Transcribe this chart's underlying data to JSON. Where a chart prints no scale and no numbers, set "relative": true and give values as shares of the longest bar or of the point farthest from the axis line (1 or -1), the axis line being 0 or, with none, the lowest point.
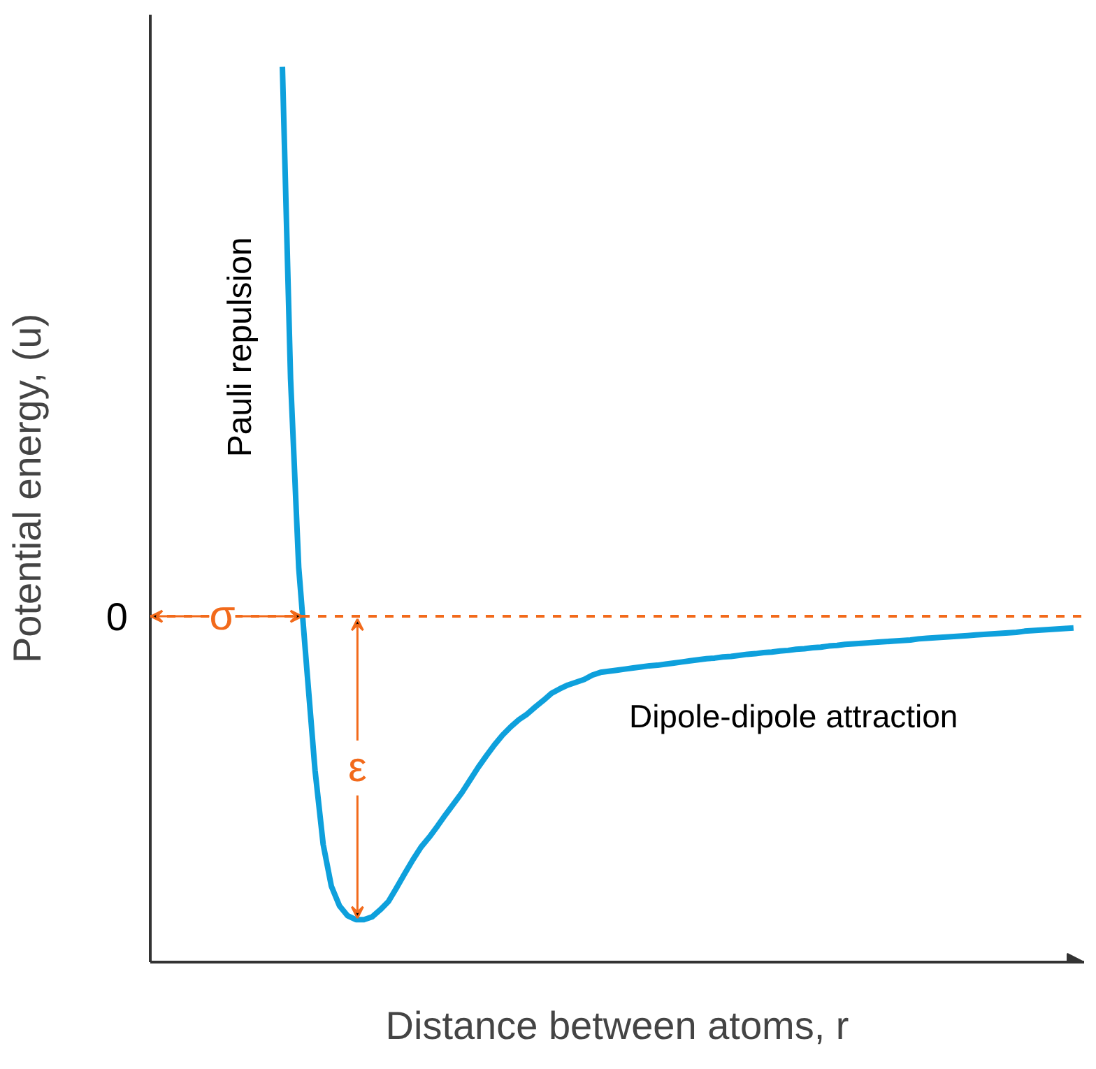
{
  "chart_data": {
    "type": "line",
    "relative": true,
    "xlabel": "Distance between atoms, r",
    "ylabel": "Potential energy, (u)",
    "categories": [
      null,
      null,
      null,
      null,
      null,
      null,
      null,
      null,
      null,
      null,
      null,
      null,
      null,
      null,
      null,
      null,
      null,
      null,
      null,
      null,
      null,
      null,
      null,
      null,
      null,
      null,
      null,
      null,
      null,
      null,
      null,
      null,
      null,
      null,
      null,
      null,
      null,
      null,
      null,
      null,
      null,
      null,
      null,
      null,
      null,
      null,
      null,
      null,
      null,
      null,
      null,
      null,
      null,
      null,
      null,
      null,
      null,
      null,
      null,
      null,
      null,
      null,
      null,
      null,
      null,
      null,
      null,
      null,
      null,
      null,
      null,
      null,
      null,
      null,
      null,
      null,
      null,
      null,
      null,
      null,
      null,
      null,
      null,
      null,
      null,
      null,
      null,
      null,
      null,
      null,
      null,
      null,
      null,
      null,
      null,
      null,
      null,
      null,
      null,
      null,
      null,
      null,
      null,
      null,
      null,
      null,
      null,
      null,
      null,
      null,
      null,
      null,
      null,
      null
    ],
    "series": [
      {
        "color": "#0ea0dc",
        "values": [
          null,
          null,
          null,
          null,
          null,
          null,
          null,
          null,
          null,
          null,
          null,
          null,
          null,
          null,
          null,
          null,
          1.0,
          0.433,
          0.089,
          -0.097,
          -0.28,
          -0.415,
          -0.491,
          -0.527,
          -0.545,
          -0.552,
          -0.552,
          -0.547,
          -0.534,
          -0.519,
          -0.494,
          -0.468,
          -0.443,
          -0.42,
          -0.402,
          -0.382,
          -0.361,
          -0.341,
          -0.321,
          -0.298,
          -0.275,
          -0.254,
          -0.234,
          -0.216,
          -0.201,
          -0.188,
          -0.178,
          -0.165,
          -0.153,
          -0.14,
          -0.132,
          -0.125,
          -0.12,
          -0.115,
          -0.107,
          -0.102,
          -0.1,
          -0.098,
          -0.096,
          -0.094,
          -0.092,
          -0.09,
          -0.089,
          -0.087,
          -0.085,
          -0.083,
          -0.081,
          -0.079,
          -0.077,
          -0.076,
          -0.074,
          -0.073,
          -0.071,
          -0.069,
          -0.068,
          -0.066,
          -0.065,
          -0.063,
          -0.062,
          -0.06,
          -0.059,
          -0.057,
          -0.056,
          -0.054,
          -0.053,
          -0.051,
          -0.05,
          -0.049,
          -0.048,
          -0.047,
          -0.046,
          -0.045,
          -0.044,
          -0.043,
          -0.041,
          -0.04,
          -0.039,
          -0.038,
          -0.037,
          -0.036,
          -0.035,
          -0.034,
          -0.033,
          -0.032,
          -0.031,
          -0.03,
          -0.029,
          -0.027,
          -0.026,
          -0.025,
          -0.024,
          -0.023,
          -0.022,
          -0.021
        ]
      }
    ],
    "ref_lines": [
      {
        "axis": "y",
        "value": 0,
        "label": "0",
        "color": "#f26a1b",
        "line_style": "dashed"
      }
    ],
    "annotations": [
      "Pauli repulsion",
      "Dipole-dipole attraction",
      "σ",
      "ε"
    ],
    "marker": "none",
    "line_style": "solid"
  }
}
